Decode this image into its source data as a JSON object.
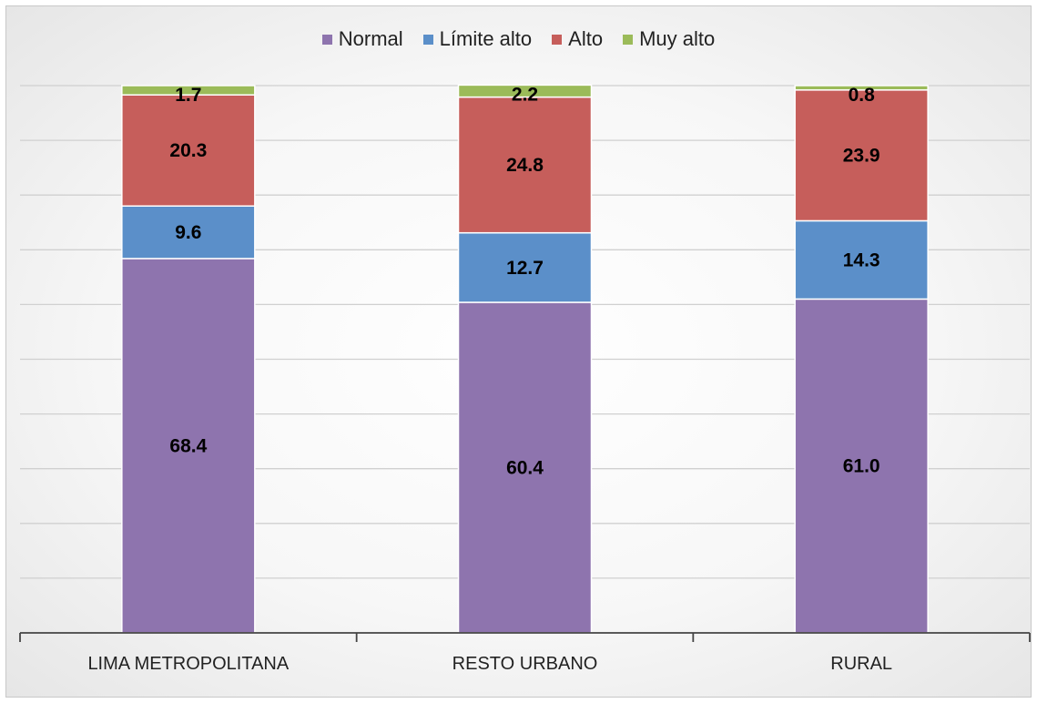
{
  "chart_data": {
    "type": "bar",
    "stacked": true,
    "categories": [
      "LIMA METROPOLITANA",
      "RESTO URBANO",
      "RURAL"
    ],
    "series": [
      {
        "name": "Normal",
        "color": "#8E74AE",
        "values": [
          68.4,
          60.4,
          61.0
        ]
      },
      {
        "name": "Límite alto",
        "color": "#5B8FC9",
        "values": [
          9.6,
          12.7,
          14.3
        ]
      },
      {
        "name": "Alto",
        "color": "#C65E5B",
        "values": [
          20.3,
          24.8,
          23.9
        ]
      },
      {
        "name": "Muy alto",
        "color": "#9BBB59",
        "values": [
          1.7,
          2.2,
          0.8
        ]
      }
    ],
    "ylim": [
      0,
      100
    ],
    "grid": true,
    "legend": "top-center",
    "title": "",
    "xlabel": "",
    "ylabel": ""
  }
}
